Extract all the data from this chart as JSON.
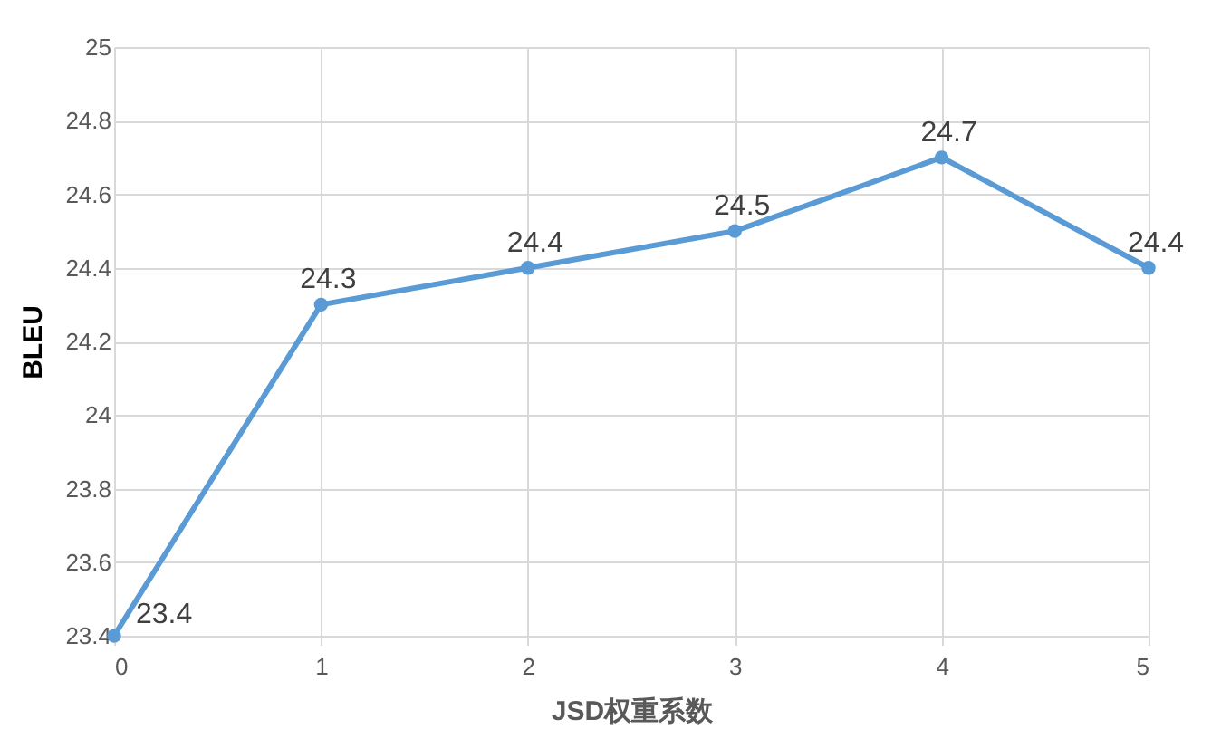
{
  "chart_data": {
    "type": "line",
    "xlabel": "JSD权重系数",
    "ylabel": "BLEU",
    "x": [
      0,
      1,
      2,
      3,
      4,
      5
    ],
    "series": [
      {
        "color": "#5b9bd5",
        "values": [
          23.4,
          24.3,
          24.4,
          24.5,
          24.7,
          24.4
        ]
      }
    ],
    "xlim": [
      0,
      5
    ],
    "xticks": [
      0,
      1,
      2,
      3,
      4,
      5
    ],
    "ylim": [
      23.4,
      25
    ],
    "yticks": [
      23.4,
      23.6,
      23.8,
      24,
      24.2,
      24.4,
      24.6,
      24.8,
      25
    ],
    "grid": true,
    "marker": "circle",
    "line_style": "solid",
    "data_labels": true
  }
}
